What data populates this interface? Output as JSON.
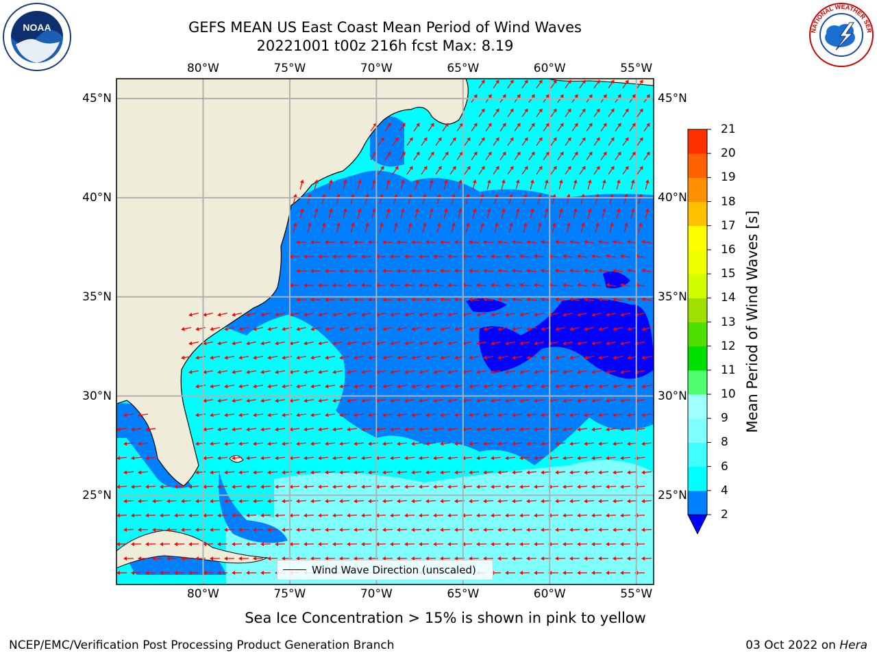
{
  "title": {
    "line1": "GEFS MEAN US East Coast Mean Period of Wind Waves",
    "line2": "20221001 t00z 216h fcst   Max: 8.19"
  },
  "logos": {
    "left": "NOAA",
    "right": "NATIONAL WEATHER SERVICE"
  },
  "map": {
    "lon_labels": [
      "80°W",
      "75°W",
      "70°W",
      "65°W",
      "60°W",
      "55°W"
    ],
    "lat_labels": [
      "45°N",
      "40°N",
      "35°N",
      "30°N",
      "25°N"
    ],
    "lon_range": [
      -85,
      -54
    ],
    "lat_range": [
      20.5,
      46
    ],
    "grid": true,
    "legend_label": "Wind Wave Direction (unscaled)",
    "arrow_color": "#ff0000",
    "land_color": "#efedd9",
    "dominant_direction": "toward northeast in north, toward southwest in south"
  },
  "colorbar": {
    "label": "Mean Period of Wind Waves [s]",
    "ticks": [
      "2",
      "4",
      "6",
      "8",
      "9",
      "10",
      "11",
      "12",
      "13",
      "14",
      "15",
      "16",
      "17",
      "18",
      "19",
      "20",
      "21"
    ],
    "levels": [
      2,
      4,
      6,
      8,
      9,
      10,
      11,
      12,
      13,
      14,
      15,
      16,
      17,
      18,
      19,
      20,
      21
    ],
    "colors": [
      "#0080ff",
      "#00ffff",
      "#40ffff",
      "#80ffff",
      "#a0ffff",
      "#50ff70",
      "#00e000",
      "#50e000",
      "#a0e000",
      "#d0ff00",
      "#f0ff00",
      "#ffff00",
      "#ffc000",
      "#ff9000",
      "#ff6000",
      "#ff3000",
      "#ff0000"
    ],
    "under_color": "#0000ff"
  },
  "caption": "Sea Ice Concentration > 15% is shown in pink to yellow",
  "footer": {
    "left": "NCEP/EMC/Verification Post Processing Product Generation Branch",
    "right_date": "03 Oct 2022 on",
    "right_host": "Hera"
  }
}
